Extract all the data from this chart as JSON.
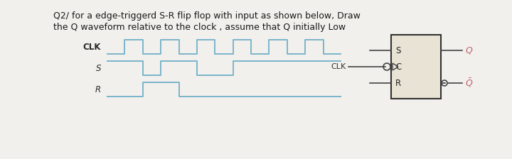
{
  "title_line1": "Q2/ for a edge-triggerd S-R flip flop with input as shown below, Draw",
  "title_line2": "the Q waveform relative to the clock , assume that Q initially Low",
  "bg_color": "#f2f0ec",
  "waveform_color": "#7ab5cc",
  "text_color": "#1a1a1a",
  "label_color": "#2a2a2a",
  "clk_label": "CLK",
  "s_label": "S",
  "r_label": "R",
  "clk_x": [
    0,
    1,
    1,
    2,
    2,
    3,
    3,
    4,
    4,
    5,
    5,
    6,
    6,
    7,
    7,
    8,
    8,
    9,
    9,
    10,
    10,
    11,
    11,
    12,
    12,
    13
  ],
  "clk_y": [
    0,
    0,
    1,
    1,
    0,
    0,
    1,
    1,
    0,
    0,
    1,
    1,
    0,
    0,
    1,
    1,
    0,
    0,
    1,
    1,
    0,
    0,
    1,
    1,
    0,
    0
  ],
  "s_x": [
    0,
    2,
    2,
    3,
    3,
    5,
    5,
    7,
    7,
    13
  ],
  "s_y": [
    1,
    1,
    0,
    0,
    1,
    1,
    0,
    0,
    1,
    1
  ],
  "r_x": [
    0,
    2,
    2,
    4,
    4,
    13
  ],
  "r_y": [
    0,
    0,
    1,
    1,
    0,
    0
  ],
  "ff_inputs": [
    "S",
    "C",
    "R"
  ],
  "ff_box_color": "#e8e3d5",
  "q_color": "#c06070",
  "clk_arrow_label": "CLK"
}
